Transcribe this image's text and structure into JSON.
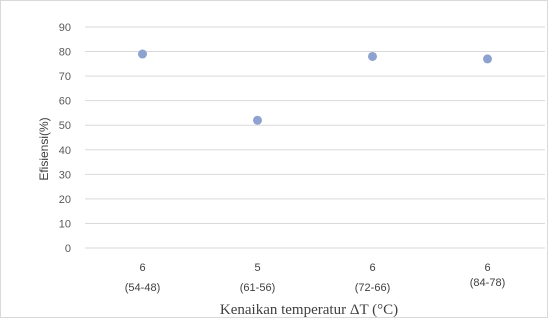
{
  "chart_data": {
    "type": "scatter",
    "title": "",
    "xlabel": "Kenaikan temperatur ΔT (°C)",
    "ylabel": "Efisiensi(%)",
    "ylim": [
      0,
      90
    ],
    "yticks": [
      0,
      10,
      20,
      30,
      40,
      50,
      60,
      70,
      80,
      90
    ],
    "categories": [
      {
        "value": "6",
        "range": "(54-48)"
      },
      {
        "value": "5",
        "range": "(61-56)"
      },
      {
        "value": "6",
        "range": "(72-66)"
      },
      {
        "value": "6",
        "range": "(84-78)"
      }
    ],
    "values": [
      79,
      52,
      78,
      77
    ],
    "grid": true,
    "legend": "none",
    "marker_color": "#8ea2cf",
    "grid_color": "#d9d9d9"
  }
}
